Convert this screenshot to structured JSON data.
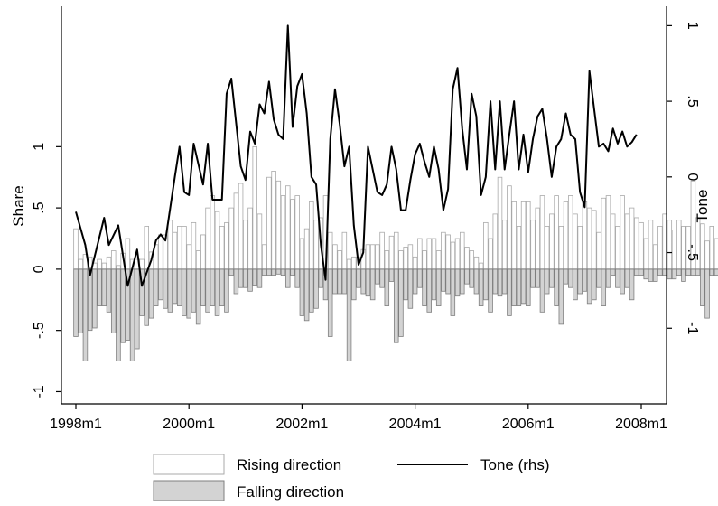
{
  "chart_data": {
    "type": "bar",
    "x_axis": {
      "ticks": [
        "1998m1",
        "2000m1",
        "2002m1",
        "2004m1",
        "2006m1",
        "2008m1"
      ],
      "range": [
        "1998m1",
        "2008m1"
      ]
    },
    "y_axis_left": {
      "label": "Share",
      "ticks": [
        "-1",
        "-.5",
        "0",
        ".5",
        "1"
      ],
      "range": [
        -1.1,
        2.05
      ]
    },
    "y_axis_right": {
      "label": "Tone",
      "ticks": [
        "-1",
        "-.5",
        "0",
        ".5",
        "1"
      ],
      "range": [
        -1.5,
        1.05
      ]
    },
    "series": [
      {
        "name": "Rising direction",
        "kind": "bar",
        "axis": "left",
        "color": "#ffffff",
        "stroke": "#a9a9a9",
        "start": "1998m1",
        "values": [
          0.33,
          0.08,
          0.12,
          0.1,
          0.05,
          0.08,
          0.05,
          0.1,
          0.15,
          0.03,
          0.13,
          0.25,
          0.08,
          0.08,
          0.08,
          0.35,
          0.14,
          0.2,
          0.28,
          0.28,
          0.4,
          0.3,
          0.35,
          0.35,
          0.2,
          0.38,
          0.15,
          0.28,
          0.5,
          0.6,
          0.47,
          0.35,
          0.38,
          0.5,
          0.62,
          0.7,
          0.4,
          0.5,
          1.0,
          0.45,
          0.2,
          0.75,
          0.8,
          0.72,
          0.6,
          0.68,
          0.57,
          0.6,
          0.25,
          0.33,
          0.55,
          0.4,
          0.42,
          0.6,
          0.3,
          0.2,
          0.15,
          0.3,
          0.08,
          0.1,
          0.1,
          0.16,
          0.2,
          0.2,
          0.2,
          0.3,
          0.15,
          0.27,
          0.3,
          0.15,
          0.18,
          0.2,
          0.1,
          0.25,
          0.15,
          0.25,
          0.25,
          0.15,
          0.3,
          0.28,
          0.22,
          0.25,
          0.3,
          0.18,
          0.15,
          0.1,
          0.05,
          0.38,
          0.25,
          0.45,
          0.75,
          0.4,
          0.68,
          0.55,
          0.35,
          0.55,
          0.55,
          0.4,
          0.5,
          0.6,
          0.35,
          0.45,
          0.6,
          0.35,
          0.55,
          0.6,
          0.45,
          0.35,
          0.55,
          0.5,
          0.48,
          0.3,
          0.58,
          0.6,
          0.45,
          0.35,
          0.6,
          0.45,
          0.5,
          0.42,
          0.38,
          0.25,
          0.4,
          0.2,
          0.35,
          0.45,
          0.4,
          0.32,
          0.4,
          0.35,
          0.35,
          0.72,
          0.42,
          0.37,
          0.23,
          0.35,
          0.25,
          0.27,
          0.3,
          0.35,
          0.25,
          0.3,
          0.18,
          0.27,
          0.28,
          0.25,
          0.28
        ]
      },
      {
        "name": "Falling direction",
        "kind": "bar",
        "axis": "left",
        "color": "#d3d3d3",
        "stroke": "#7f7f7f",
        "start": "1998m1",
        "values": [
          -0.55,
          -0.52,
          -0.75,
          -0.5,
          -0.48,
          -0.3,
          -0.3,
          -0.35,
          -0.52,
          -0.75,
          -0.6,
          -0.58,
          -0.75,
          -0.65,
          -0.38,
          -0.46,
          -0.4,
          -0.3,
          -0.25,
          -0.32,
          -0.35,
          -0.28,
          -0.3,
          -0.38,
          -0.4,
          -0.35,
          -0.45,
          -0.3,
          -0.35,
          -0.3,
          -0.38,
          -0.3,
          -0.35,
          -0.05,
          -0.2,
          -0.15,
          -0.15,
          -0.18,
          -0.13,
          -0.15,
          -0.05,
          -0.05,
          -0.05,
          -0.04,
          -0.05,
          -0.15,
          -0.05,
          -0.15,
          -0.38,
          -0.42,
          -0.35,
          -0.32,
          -0.15,
          -0.25,
          -0.55,
          -0.2,
          -0.2,
          -0.2,
          -0.75,
          -0.25,
          -0.15,
          -0.2,
          -0.22,
          -0.25,
          -0.12,
          -0.15,
          -0.3,
          -0.1,
          -0.6,
          -0.55,
          -0.25,
          -0.32,
          -0.2,
          -0.15,
          -0.3,
          -0.35,
          -0.25,
          -0.3,
          -0.18,
          -0.2,
          -0.38,
          -0.22,
          -0.2,
          -0.12,
          -0.15,
          -0.2,
          -0.3,
          -0.25,
          -0.35,
          -0.2,
          -0.22,
          -0.2,
          -0.38,
          -0.3,
          -0.3,
          -0.28,
          -0.3,
          -0.15,
          -0.15,
          -0.35,
          -0.2,
          -0.15,
          -0.3,
          -0.45,
          -0.12,
          -0.15,
          -0.25,
          -0.2,
          -0.18,
          -0.28,
          -0.25,
          -0.15,
          -0.3,
          -0.15,
          -0.05,
          -0.15,
          -0.2,
          -0.15,
          -0.25,
          -0.05,
          -0.05,
          -0.08,
          -0.1,
          -0.1,
          -0.05,
          -0.05,
          -0.08,
          -0.08,
          -0.05,
          -0.1,
          -0.05,
          -0.05,
          -0.05,
          -0.3,
          -0.4,
          -0.05,
          -0.05,
          -0.05,
          -0.05,
          -0.06,
          -0.05,
          -0.05,
          -0.05,
          -0.03,
          -0.04,
          -0.05,
          -0.03,
          -0.05,
          -0.05
        ]
      },
      {
        "name": "Tone (rhs)",
        "kind": "line",
        "axis": "right",
        "color": "#000000",
        "points": [
          [
            "1998m1",
            -0.23
          ],
          [
            "1998m3",
            -0.45
          ],
          [
            "1998m4",
            -0.65
          ],
          [
            "1998m7",
            -0.27
          ],
          [
            "1998m8",
            -0.45
          ],
          [
            "1998m10",
            -0.32
          ],
          [
            "1998m12",
            -0.72
          ],
          [
            "1999m2",
            -0.48
          ],
          [
            "1999m3",
            -0.72
          ],
          [
            "1999m5",
            -0.55
          ],
          [
            "1999m6",
            -0.42
          ],
          [
            "1999m7",
            -0.38
          ],
          [
            "1999m8",
            -0.42
          ],
          [
            "1999m10",
            0.0
          ],
          [
            "1999m11",
            0.2
          ],
          [
            "1999m12",
            -0.1
          ],
          [
            "2000m1",
            -0.12
          ],
          [
            "2000m2",
            0.22
          ],
          [
            "2000m4",
            -0.05
          ],
          [
            "2000m5",
            0.22
          ],
          [
            "2000m6",
            -0.15
          ],
          [
            "2000m8",
            -0.15
          ],
          [
            "2000m9",
            0.55
          ],
          [
            "2000m10",
            0.65
          ],
          [
            "2000m12",
            0.07
          ],
          [
            "2001m1",
            -0.02
          ],
          [
            "2001m2",
            0.3
          ],
          [
            "2001m3",
            0.22
          ],
          [
            "2001m4",
            0.48
          ],
          [
            "2001m5",
            0.42
          ],
          [
            "2001m6",
            0.63
          ],
          [
            "2001m7",
            0.38
          ],
          [
            "2001m8",
            0.28
          ],
          [
            "2001m9",
            0.25
          ],
          [
            "2001m10",
            1.0
          ],
          [
            "2001m11",
            0.33
          ],
          [
            "2001m12",
            0.6
          ],
          [
            "2002m1",
            0.68
          ],
          [
            "2002m2",
            0.42
          ],
          [
            "2002m3",
            0.0
          ],
          [
            "2002m4",
            -0.05
          ],
          [
            "2002m5",
            -0.45
          ],
          [
            "2002m6",
            -0.68
          ],
          [
            "2002m7",
            0.25
          ],
          [
            "2002m8",
            0.58
          ],
          [
            "2002m9",
            0.35
          ],
          [
            "2002m10",
            0.07
          ],
          [
            "2002m11",
            0.2
          ],
          [
            "2002m12",
            -0.32
          ],
          [
            "2003m1",
            -0.58
          ],
          [
            "2003m2",
            -0.5
          ],
          [
            "2003m3",
            0.2
          ],
          [
            "2003m4",
            0.05
          ],
          [
            "2003m5",
            -0.1
          ],
          [
            "2003m6",
            -0.12
          ],
          [
            "2003m7",
            -0.05
          ],
          [
            "2003m8",
            0.2
          ],
          [
            "2003m9",
            0.05
          ],
          [
            "2003m10",
            -0.22
          ],
          [
            "2003m11",
            -0.22
          ],
          [
            "2003m12",
            -0.02
          ],
          [
            "2004m1",
            0.15
          ],
          [
            "2004m2",
            0.22
          ],
          [
            "2004m3",
            0.1
          ],
          [
            "2004m4",
            0.0
          ],
          [
            "2004m5",
            0.2
          ],
          [
            "2004m6",
            0.05
          ],
          [
            "2004m7",
            -0.22
          ],
          [
            "2004m8",
            -0.08
          ],
          [
            "2004m9",
            0.58
          ],
          [
            "2004m10",
            0.72
          ],
          [
            "2004m11",
            0.32
          ],
          [
            "2004m12",
            0.05
          ],
          [
            "2005m1",
            0.55
          ],
          [
            "2005m2",
            0.4
          ],
          [
            "2005m3",
            -0.12
          ],
          [
            "2005m4",
            0.0
          ],
          [
            "2005m5",
            0.5
          ],
          [
            "2005m6",
            0.05
          ],
          [
            "2005m7",
            0.5
          ],
          [
            "2005m8",
            0.05
          ],
          [
            "2005m9",
            0.28
          ],
          [
            "2005m10",
            0.5
          ],
          [
            "2005m11",
            0.05
          ],
          [
            "2005m12",
            0.28
          ],
          [
            "2006m1",
            0.03
          ],
          [
            "2006m2",
            0.25
          ],
          [
            "2006m3",
            0.4
          ],
          [
            "2006m4",
            0.45
          ],
          [
            "2006m5",
            0.25
          ],
          [
            "2006m6",
            0.0
          ],
          [
            "2006m7",
            0.2
          ],
          [
            "2006m8",
            0.25
          ],
          [
            "2006m9",
            0.42
          ],
          [
            "2006m10",
            0.28
          ],
          [
            "2006m11",
            0.25
          ],
          [
            "2006m12",
            -0.1
          ],
          [
            "2007m1",
            -0.2
          ],
          [
            "2007m2",
            0.7
          ],
          [
            "2007m3",
            0.45
          ],
          [
            "2007m4",
            0.2
          ],
          [
            "2007m5",
            0.22
          ],
          [
            "2007m6",
            0.17
          ],
          [
            "2007m7",
            0.32
          ],
          [
            "2007m8",
            0.22
          ],
          [
            "2007m9",
            0.3
          ],
          [
            "2007m10",
            0.2
          ],
          [
            "2007m11",
            0.23
          ],
          [
            "2007m12",
            0.28
          ]
        ]
      }
    ],
    "legend": {
      "placement": "bottom",
      "items": [
        {
          "label": "Rising direction",
          "swatch": "bar-white"
        },
        {
          "label": "Tone (rhs)",
          "swatch": "line-black"
        },
        {
          "label": "Falling direction",
          "swatch": "bar-gray"
        }
      ]
    }
  }
}
